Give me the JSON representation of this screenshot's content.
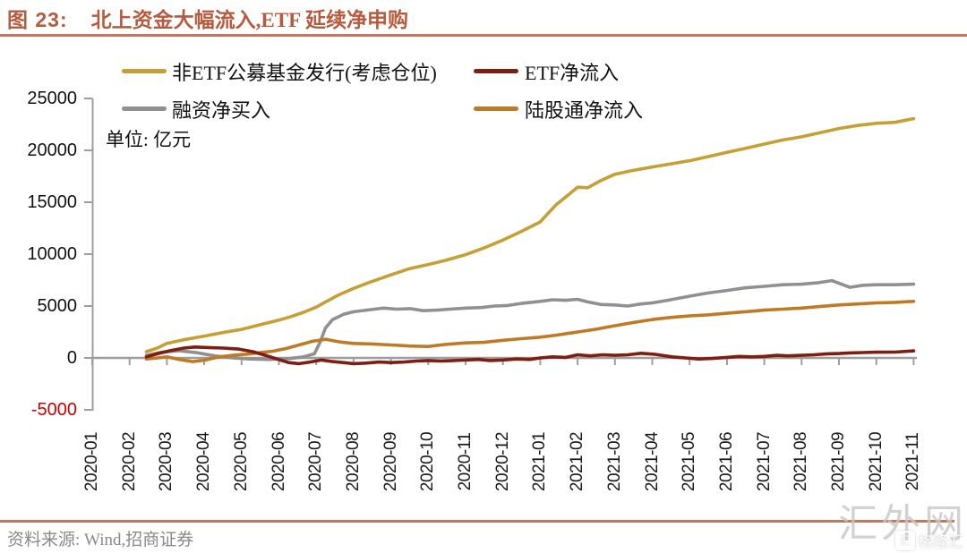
{
  "header": {
    "figure_label": "图 23:",
    "title": "北上资金大幅流入,ETF 延续净申购"
  },
  "unit_label": "单位:  亿元",
  "chart_data": {
    "type": "line",
    "title": "北上资金大幅流入,ETF 延续净申购",
    "unit": "亿元",
    "grid": false,
    "legend_position": "top-left",
    "ylim": [
      -5000,
      25000
    ],
    "y_ticks": [
      25000,
      20000,
      15000,
      10000,
      5000,
      0,
      -5000
    ],
    "categories": [
      "2020-01",
      "2020-02",
      "2020-03",
      "2020-04",
      "2020-05",
      "2020-06",
      "2020-07",
      "2020-08",
      "2020-09",
      "2020-10",
      "2020-11",
      "2020-12",
      "2021-01",
      "2021-02",
      "2021-03",
      "2021-04",
      "2021-05",
      "2021-06",
      "2021-07",
      "2021-08",
      "2021-09",
      "2021-10",
      "2021-11"
    ],
    "x_note": "points are [month_index, value_in_yi_yuan]; month_index 0 = 2020-01",
    "series": [
      {
        "name": "非ETF公募基金发行(考虑仓位)",
        "color": "#C4A035",
        "points": [
          [
            1.45,
            600
          ],
          [
            1.74,
            950
          ],
          [
            2,
            1400
          ],
          [
            2.45,
            1750
          ],
          [
            3,
            2100
          ],
          [
            3.5,
            2450
          ],
          [
            4,
            2750
          ],
          [
            4.5,
            3200
          ],
          [
            5,
            3650
          ],
          [
            5.3,
            3950
          ],
          [
            5.66,
            4400
          ],
          [
            6,
            4900
          ],
          [
            6.25,
            5400
          ],
          [
            6.56,
            6000
          ],
          [
            7,
            6700
          ],
          [
            7.44,
            7300
          ],
          [
            8,
            8000
          ],
          [
            8.5,
            8600
          ],
          [
            9,
            9000
          ],
          [
            9.46,
            9400
          ],
          [
            10,
            9950
          ],
          [
            10.5,
            10600
          ],
          [
            11,
            11350
          ],
          [
            11.5,
            12200
          ],
          [
            12,
            13100
          ],
          [
            12.2,
            13900
          ],
          [
            12.44,
            14800
          ],
          [
            12.68,
            15500
          ],
          [
            13,
            16450
          ],
          [
            13.27,
            16400
          ],
          [
            13.63,
            17100
          ],
          [
            14,
            17700
          ],
          [
            14.46,
            18050
          ],
          [
            15,
            18400
          ],
          [
            15.5,
            18700
          ],
          [
            16,
            19000
          ],
          [
            16.5,
            19400
          ],
          [
            17,
            19800
          ],
          [
            17.5,
            20200
          ],
          [
            18,
            20600
          ],
          [
            18.5,
            21000
          ],
          [
            19,
            21300
          ],
          [
            19.5,
            21700
          ],
          [
            20,
            22100
          ],
          [
            20.5,
            22400
          ],
          [
            21,
            22600
          ],
          [
            21.5,
            22700
          ],
          [
            22,
            23050
          ]
        ]
      },
      {
        "name": "ETF净流入",
        "color": "#7E1D12",
        "points": [
          [
            1.45,
            100
          ],
          [
            1.74,
            400
          ],
          [
            2.09,
            700
          ],
          [
            2.45,
            950
          ],
          [
            2.74,
            1050
          ],
          [
            3.12,
            1000
          ],
          [
            3.52,
            950
          ],
          [
            3.92,
            850
          ],
          [
            4.3,
            600
          ],
          [
            4.64,
            250
          ],
          [
            4.95,
            -100
          ],
          [
            5.26,
            -450
          ],
          [
            5.54,
            -550
          ],
          [
            5.83,
            -400
          ],
          [
            6.14,
            -200
          ],
          [
            6.44,
            -350
          ],
          [
            6.73,
            -450
          ],
          [
            7,
            -550
          ],
          [
            7.32,
            -500
          ],
          [
            7.68,
            -400
          ],
          [
            8,
            -450
          ],
          [
            8.35,
            -400
          ],
          [
            8.68,
            -300
          ],
          [
            9,
            -250
          ],
          [
            9.35,
            -300
          ],
          [
            9.7,
            -250
          ],
          [
            10,
            -200
          ],
          [
            10.35,
            -150
          ],
          [
            10.65,
            -250
          ],
          [
            11,
            -200
          ],
          [
            11.37,
            -100
          ],
          [
            11.72,
            -150
          ],
          [
            12,
            0
          ],
          [
            12.33,
            100
          ],
          [
            12.68,
            50
          ],
          [
            13,
            300
          ],
          [
            13.34,
            200
          ],
          [
            13.67,
            300
          ],
          [
            14,
            250
          ],
          [
            14.34,
            300
          ],
          [
            14.7,
            450
          ],
          [
            15.06,
            350
          ],
          [
            15.53,
            100
          ],
          [
            15.89,
            0
          ],
          [
            16.24,
            -100
          ],
          [
            16.6,
            -50
          ],
          [
            17,
            50
          ],
          [
            17.32,
            150
          ],
          [
            17.67,
            100
          ],
          [
            18,
            150
          ],
          [
            18.34,
            250
          ],
          [
            18.62,
            200
          ],
          [
            19,
            250
          ],
          [
            19.33,
            300
          ],
          [
            19.69,
            400
          ],
          [
            20,
            420
          ],
          [
            20.29,
            480
          ],
          [
            20.64,
            520
          ],
          [
            21,
            550
          ],
          [
            21.5,
            560
          ],
          [
            22,
            680
          ]
        ]
      },
      {
        "name": "融资净买入",
        "color": "#909090",
        "points": [
          [
            1.45,
            250
          ],
          [
            1.85,
            550
          ],
          [
            2.33,
            700
          ],
          [
            2.81,
            500
          ],
          [
            3.28,
            200
          ],
          [
            3.76,
            0
          ],
          [
            4.23,
            -100
          ],
          [
            4.71,
            -150
          ],
          [
            5.18,
            -100
          ],
          [
            5.66,
            100
          ],
          [
            5.95,
            400
          ],
          [
            6.1,
            1500
          ],
          [
            6.25,
            2900
          ],
          [
            6.44,
            3700
          ],
          [
            6.73,
            4200
          ],
          [
            7,
            4450
          ],
          [
            7.44,
            4650
          ],
          [
            7.8,
            4800
          ],
          [
            8.16,
            4700
          ],
          [
            8.51,
            4750
          ],
          [
            8.87,
            4550
          ],
          [
            9.23,
            4600
          ],
          [
            9.58,
            4700
          ],
          [
            10,
            4800
          ],
          [
            10.42,
            4850
          ],
          [
            10.77,
            5000
          ],
          [
            11.13,
            5050
          ],
          [
            11.49,
            5250
          ],
          [
            12,
            5450
          ],
          [
            12.33,
            5600
          ],
          [
            12.68,
            5550
          ],
          [
            13,
            5650
          ],
          [
            13.27,
            5400
          ],
          [
            13.63,
            5150
          ],
          [
            14,
            5100
          ],
          [
            14.34,
            5000
          ],
          [
            14.7,
            5200
          ],
          [
            15,
            5300
          ],
          [
            15.41,
            5550
          ],
          [
            16,
            5950
          ],
          [
            16.48,
            6250
          ],
          [
            17,
            6500
          ],
          [
            17.48,
            6750
          ],
          [
            18,
            6900
          ],
          [
            18.5,
            7050
          ],
          [
            19,
            7100
          ],
          [
            19.45,
            7250
          ],
          [
            19.81,
            7450
          ],
          [
            20.29,
            6800
          ],
          [
            20.64,
            7000
          ],
          [
            21,
            7050
          ],
          [
            21.5,
            7050
          ],
          [
            22,
            7100
          ]
        ]
      },
      {
        "name": "陆股通净流入",
        "color": "#BF7A25",
        "points": [
          [
            1.45,
            -100
          ],
          [
            1.74,
            0
          ],
          [
            2,
            100
          ],
          [
            2.33,
            -150
          ],
          [
            2.69,
            -350
          ],
          [
            3.04,
            -200
          ],
          [
            3.4,
            100
          ],
          [
            3.76,
            250
          ],
          [
            4.11,
            350
          ],
          [
            4.47,
            500
          ],
          [
            4.83,
            650
          ],
          [
            5.18,
            900
          ],
          [
            5.54,
            1250
          ],
          [
            5.9,
            1600
          ],
          [
            6.25,
            1800
          ],
          [
            6.61,
            1550
          ],
          [
            7,
            1400
          ],
          [
            7.44,
            1350
          ],
          [
            8,
            1250
          ],
          [
            8.51,
            1150
          ],
          [
            9,
            1100
          ],
          [
            9.46,
            1300
          ],
          [
            10,
            1450
          ],
          [
            10.49,
            1500
          ],
          [
            11,
            1700
          ],
          [
            11.49,
            1850
          ],
          [
            12,
            2000
          ],
          [
            12.44,
            2200
          ],
          [
            13,
            2500
          ],
          [
            13.46,
            2750
          ],
          [
            14,
            3100
          ],
          [
            14.46,
            3400
          ],
          [
            15,
            3700
          ],
          [
            15.48,
            3900
          ],
          [
            16,
            4050
          ],
          [
            16.48,
            4150
          ],
          [
            17,
            4300
          ],
          [
            17.48,
            4450
          ],
          [
            18,
            4600
          ],
          [
            18.48,
            4700
          ],
          [
            19,
            4800
          ],
          [
            19.48,
            4950
          ],
          [
            20,
            5100
          ],
          [
            20.5,
            5200
          ],
          [
            21,
            5300
          ],
          [
            21.5,
            5350
          ],
          [
            22,
            5450
          ]
        ]
      }
    ]
  },
  "footer": {
    "source": "资料来源:  Wind,招商证券"
  },
  "watermarks": {
    "large": "汇外网",
    "small": "格隆汇",
    "small_logo_glyph": "汇"
  }
}
